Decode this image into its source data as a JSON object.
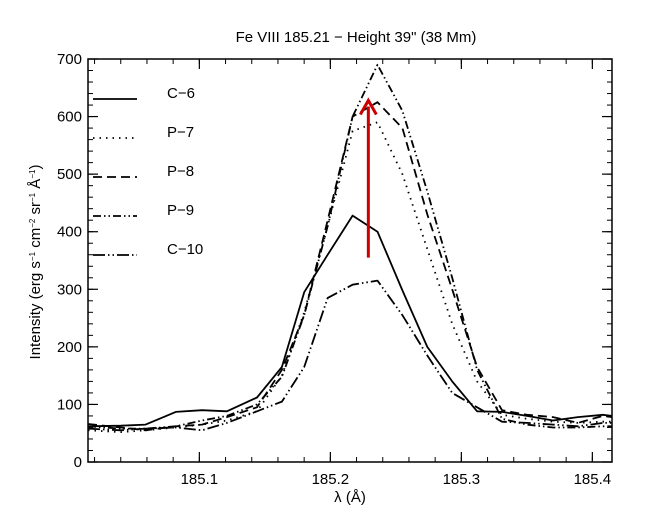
{
  "chart_data": {
    "type": "line",
    "title": "Fe VIII 185.21 − Height 39\" (38 Mm)",
    "xlabel": "λ (Å)",
    "ylabel": {
      "parts": [
        {
          "t": "Intensity (erg s",
          "sup": false
        },
        {
          "t": "−1",
          "sup": true
        },
        {
          "t": " cm",
          "sup": false
        },
        {
          "t": "−2",
          "sup": true
        },
        {
          "t": " sr",
          "sup": false
        },
        {
          "t": "−1",
          "sup": true
        },
        {
          "t": " Å",
          "sup": false
        },
        {
          "t": "−1",
          "sup": true
        },
        {
          "t": ")",
          "sup": false
        }
      ]
    },
    "xlim": [
      185.015,
      185.415
    ],
    "ylim": [
      0,
      700
    ],
    "xticks": [
      185.1,
      185.2,
      185.3,
      185.4
    ],
    "xtick_labels": [
      "185.1",
      "185.2",
      "185.3",
      "185.4"
    ],
    "yticks": [
      0,
      100,
      200,
      300,
      400,
      500,
      600,
      700
    ],
    "ytick_labels": [
      "0",
      "100",
      "200",
      "300",
      "400",
      "500",
      "600",
      "700"
    ],
    "x": [
      185.015,
      185.04,
      185.059,
      185.082,
      185.102,
      185.121,
      185.144,
      185.163,
      185.18,
      185.198,
      185.217,
      185.236,
      185.255,
      185.274,
      185.293,
      185.312,
      185.331,
      185.35,
      185.37,
      185.389,
      185.408,
      185.415
    ],
    "series": [
      {
        "name": "C−6",
        "dash": "solid",
        "values": [
          62,
          63,
          65,
          87,
          90,
          88,
          112,
          165,
          295,
          360,
          428,
          400,
          298,
          200,
          140,
          88,
          87,
          80,
          72,
          78,
          82,
          80
        ]
      },
      {
        "name": "P−7",
        "dash": "dot",
        "values": [
          55,
          52,
          55,
          60,
          65,
          72,
          88,
          150,
          260,
          410,
          575,
          590,
          500,
          370,
          240,
          140,
          82,
          75,
          70,
          68,
          70,
          70
        ]
      },
      {
        "name": "P−8",
        "dash": "dash",
        "values": [
          66,
          60,
          55,
          62,
          65,
          78,
          95,
          160,
          255,
          420,
          600,
          625,
          580,
          430,
          300,
          165,
          90,
          82,
          78,
          68,
          80,
          78
        ]
      },
      {
        "name": "P−9",
        "dash": "dashdotdot",
        "values": [
          62,
          58,
          58,
          62,
          72,
          80,
          100,
          148,
          255,
          410,
          600,
          690,
          610,
          470,
          320,
          160,
          75,
          65,
          60,
          60,
          62,
          62
        ]
      },
      {
        "name": "C−10",
        "dash": "longdashdotdot",
        "values": [
          58,
          55,
          58,
          60,
          55,
          68,
          88,
          105,
          165,
          285,
          308,
          315,
          255,
          185,
          120,
          95,
          70,
          68,
          65,
          62,
          68,
          68
        ]
      }
    ],
    "annotations": [
      {
        "type": "arrow",
        "color": "#cc0000",
        "x": 185.229,
        "y_from": 355,
        "y_to": 628
      }
    ],
    "legend_placement": "upper-left",
    "grid": false
  }
}
